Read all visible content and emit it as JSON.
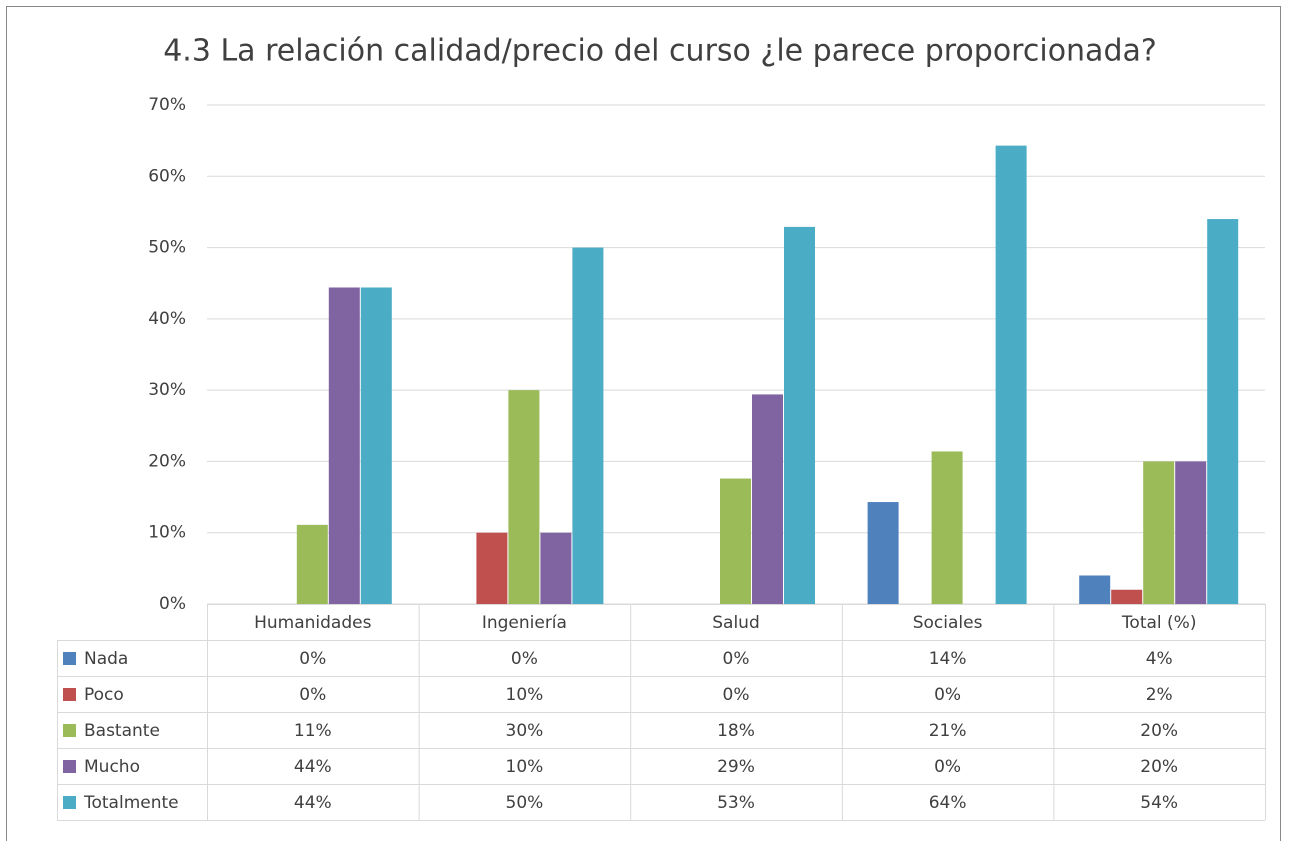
{
  "chart_data": {
    "type": "bar",
    "title": "4.3 La relación calidad/precio del curso ¿le parece proporcionada?",
    "categories": [
      "Humanidades",
      "Ingeniería",
      "Salud",
      "Sociales",
      "Total (%)"
    ],
    "series": [
      {
        "name": "Nada",
        "color": "#4f81bd",
        "values": [
          0,
          0,
          0,
          14.3,
          4
        ],
        "value_labels": [
          "0%",
          "0%",
          "0%",
          "14%",
          "4%"
        ]
      },
      {
        "name": "Poco",
        "color": "#c0504d",
        "values": [
          0,
          10,
          0,
          0,
          2
        ],
        "value_labels": [
          "0%",
          "10%",
          "0%",
          "0%",
          "2%"
        ]
      },
      {
        "name": "Bastante",
        "color": "#9bbb59",
        "values": [
          11.1,
          30,
          17.6,
          21.4,
          20
        ],
        "value_labels": [
          "11%",
          "30%",
          "18%",
          "21%",
          "20%"
        ]
      },
      {
        "name": "Mucho",
        "color": "#8064a2",
        "values": [
          44.4,
          10,
          29.4,
          0,
          20
        ],
        "value_labels": [
          "44%",
          "10%",
          "29%",
          "0%",
          "20%"
        ]
      },
      {
        "name": "Totalmente",
        "color": "#4bacc6",
        "values": [
          44.4,
          50,
          52.9,
          64.3,
          54
        ],
        "value_labels": [
          "44%",
          "50%",
          "53%",
          "64%",
          "54%"
        ]
      }
    ],
    "ylim": [
      0,
      70
    ],
    "yticks": [
      {
        "value": 0,
        "label": "0%"
      },
      {
        "value": 10,
        "label": "10%"
      },
      {
        "value": 20,
        "label": "20%"
      },
      {
        "value": 30,
        "label": "30%"
      },
      {
        "value": 40,
        "label": "40%"
      },
      {
        "value": 50,
        "label": "50%"
      },
      {
        "value": 60,
        "label": "60%"
      },
      {
        "value": 70,
        "label": "70%"
      }
    ],
    "grid": true
  }
}
